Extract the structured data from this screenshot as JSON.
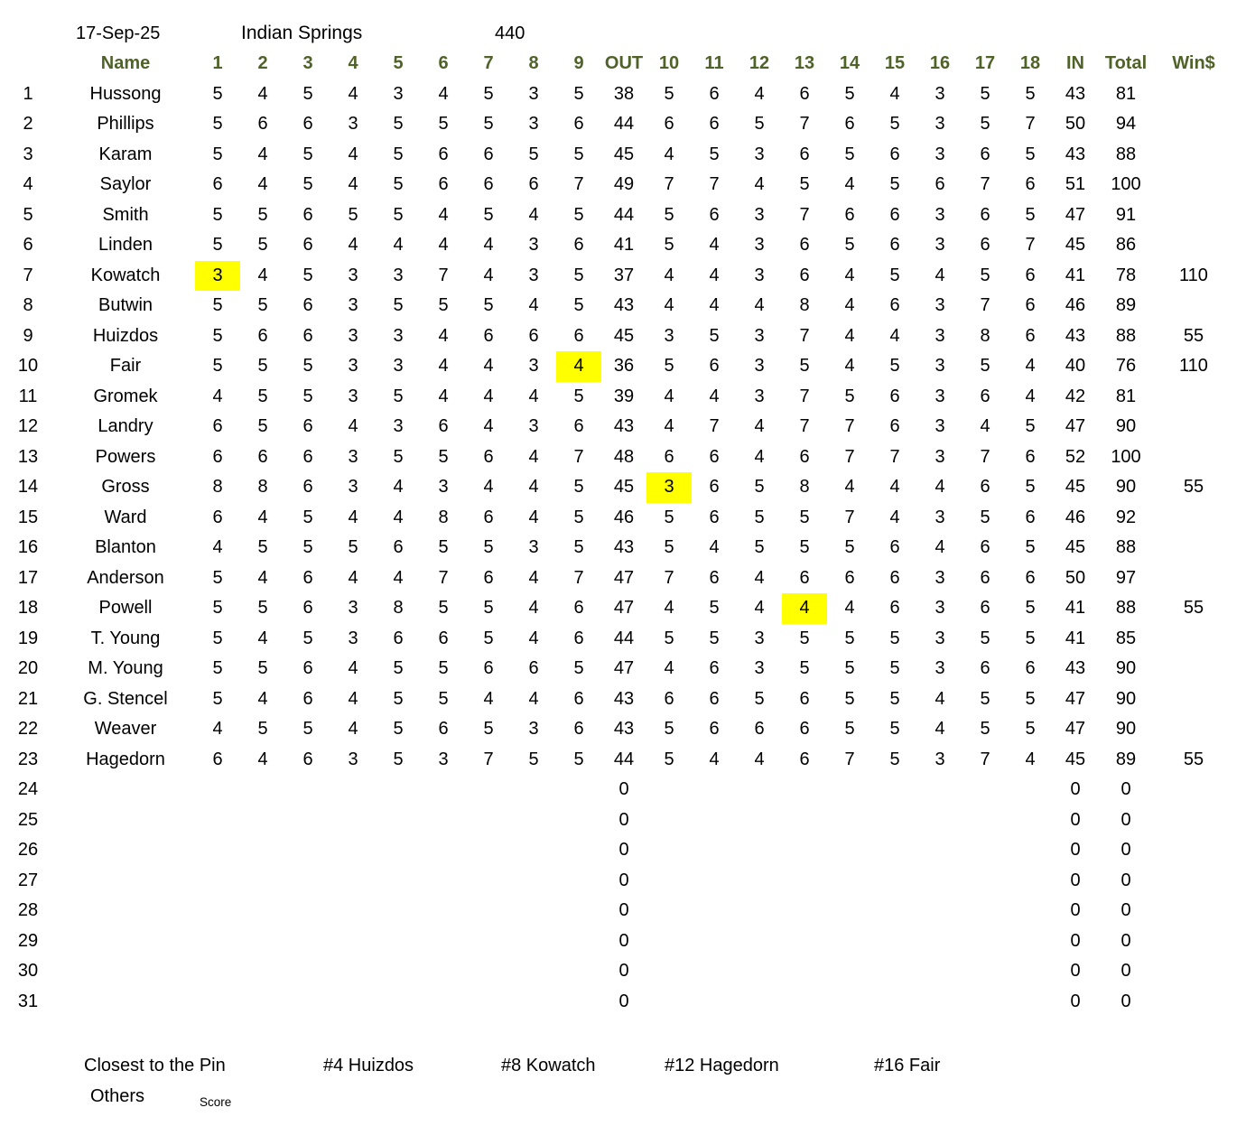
{
  "header": {
    "date": "17-Sep-25",
    "course": "Indian Springs",
    "number": "440"
  },
  "colors": {
    "header_text": "#4F6228",
    "highlight": "#FFFF00",
    "body_text": "#000000"
  },
  "table": {
    "columns": [
      "",
      "Name",
      "1",
      "2",
      "3",
      "4",
      "5",
      "6",
      "7",
      "8",
      "9",
      "OUT",
      "10",
      "11",
      "12",
      "13",
      "14",
      "15",
      "16",
      "17",
      "18",
      "IN",
      "Total",
      "Win$"
    ],
    "players": [
      {
        "row": 1,
        "name": "Hussong",
        "holes": [
          5,
          4,
          5,
          4,
          3,
          4,
          5,
          3,
          5,
          5,
          6,
          4,
          6,
          5,
          4,
          3,
          5,
          5
        ],
        "out": 38,
        "in": 43,
        "total": 81,
        "win": ""
      },
      {
        "row": 2,
        "name": "Phillips",
        "holes": [
          5,
          6,
          6,
          3,
          5,
          5,
          5,
          3,
          6,
          6,
          6,
          5,
          7,
          6,
          5,
          3,
          5,
          7
        ],
        "out": 44,
        "in": 50,
        "total": 94,
        "win": ""
      },
      {
        "row": 3,
        "name": "Karam",
        "holes": [
          5,
          4,
          5,
          4,
          5,
          6,
          6,
          5,
          5,
          4,
          5,
          3,
          6,
          5,
          6,
          3,
          6,
          5
        ],
        "out": 45,
        "in": 43,
        "total": 88,
        "win": ""
      },
      {
        "row": 4,
        "name": "Saylor",
        "holes": [
          6,
          4,
          5,
          4,
          5,
          6,
          6,
          6,
          7,
          7,
          7,
          4,
          5,
          4,
          5,
          6,
          7,
          6
        ],
        "out": 49,
        "in": 51,
        "total": 100,
        "win": ""
      },
      {
        "row": 5,
        "name": "Smith",
        "holes": [
          5,
          5,
          6,
          5,
          5,
          4,
          5,
          4,
          5,
          5,
          6,
          3,
          7,
          6,
          6,
          3,
          6,
          5
        ],
        "out": 44,
        "in": 47,
        "total": 91,
        "win": ""
      },
      {
        "row": 6,
        "name": "Linden",
        "holes": [
          5,
          5,
          6,
          4,
          4,
          4,
          4,
          3,
          6,
          5,
          4,
          3,
          6,
          5,
          6,
          3,
          6,
          7
        ],
        "out": 41,
        "in": 45,
        "total": 86,
        "win": ""
      },
      {
        "row": 7,
        "name": "Kowatch",
        "holes": [
          3,
          4,
          5,
          3,
          3,
          7,
          4,
          3,
          5,
          4,
          4,
          3,
          6,
          4,
          5,
          4,
          5,
          6
        ],
        "out": 37,
        "in": 41,
        "total": 78,
        "win": "110",
        "highlight_hole": 1
      },
      {
        "row": 8,
        "name": "Butwin",
        "holes": [
          5,
          5,
          6,
          3,
          5,
          5,
          5,
          4,
          5,
          4,
          4,
          4,
          8,
          4,
          6,
          3,
          7,
          6
        ],
        "out": 43,
        "in": 46,
        "total": 89,
        "win": ""
      },
      {
        "row": 9,
        "name": "Huizdos",
        "holes": [
          5,
          6,
          6,
          3,
          3,
          4,
          6,
          6,
          6,
          3,
          5,
          3,
          7,
          4,
          4,
          3,
          8,
          6
        ],
        "out": 45,
        "in": 43,
        "total": 88,
        "win": "55"
      },
      {
        "row": 10,
        "name": "Fair",
        "holes": [
          5,
          5,
          5,
          3,
          3,
          4,
          4,
          3,
          4,
          5,
          6,
          3,
          5,
          4,
          5,
          3,
          5,
          4
        ],
        "out": 36,
        "in": 40,
        "total": 76,
        "win": "110",
        "highlight_hole": 9
      },
      {
        "row": 11,
        "name": "Gromek",
        "holes": [
          4,
          5,
          5,
          3,
          5,
          4,
          4,
          4,
          5,
          4,
          4,
          3,
          7,
          5,
          6,
          3,
          6,
          4
        ],
        "out": 39,
        "in": 42,
        "total": 81,
        "win": ""
      },
      {
        "row": 12,
        "name": "Landry",
        "holes": [
          6,
          5,
          6,
          4,
          3,
          6,
          4,
          3,
          6,
          4,
          7,
          4,
          7,
          7,
          6,
          3,
          4,
          5
        ],
        "out": 43,
        "in": 47,
        "total": 90,
        "win": ""
      },
      {
        "row": 13,
        "name": "Powers",
        "holes": [
          6,
          6,
          6,
          3,
          5,
          5,
          6,
          4,
          7,
          6,
          6,
          4,
          6,
          7,
          7,
          3,
          7,
          6
        ],
        "out": 48,
        "in": 52,
        "total": 100,
        "win": ""
      },
      {
        "row": 14,
        "name": "Gross",
        "holes": [
          8,
          8,
          6,
          3,
          4,
          3,
          4,
          4,
          5,
          3,
          6,
          5,
          8,
          4,
          4,
          4,
          6,
          5
        ],
        "out": 45,
        "in": 45,
        "total": 90,
        "win": "55",
        "highlight_hole": 10
      },
      {
        "row": 15,
        "name": "Ward",
        "holes": [
          6,
          4,
          5,
          4,
          4,
          8,
          6,
          4,
          5,
          5,
          6,
          5,
          5,
          7,
          4,
          3,
          5,
          6
        ],
        "out": 46,
        "in": 46,
        "total": 92,
        "win": ""
      },
      {
        "row": 16,
        "name": "Blanton",
        "holes": [
          4,
          5,
          5,
          5,
          6,
          5,
          5,
          3,
          5,
          5,
          4,
          5,
          5,
          5,
          6,
          4,
          6,
          5
        ],
        "out": 43,
        "in": 45,
        "total": 88,
        "win": ""
      },
      {
        "row": 17,
        "name": "Anderson",
        "holes": [
          5,
          4,
          6,
          4,
          4,
          7,
          6,
          4,
          7,
          7,
          6,
          4,
          6,
          6,
          6,
          3,
          6,
          6
        ],
        "out": 47,
        "in": 50,
        "total": 97,
        "win": ""
      },
      {
        "row": 18,
        "name": "Powell",
        "holes": [
          5,
          5,
          6,
          3,
          8,
          5,
          5,
          4,
          6,
          4,
          5,
          4,
          4,
          4,
          6,
          3,
          6,
          5
        ],
        "out": 47,
        "in": 41,
        "total": 88,
        "win": "55",
        "highlight_hole": 13
      },
      {
        "row": 19,
        "name": "T. Young",
        "holes": [
          5,
          4,
          5,
          3,
          6,
          6,
          5,
          4,
          6,
          5,
          5,
          3,
          5,
          5,
          5,
          3,
          5,
          5
        ],
        "out": 44,
        "in": 41,
        "total": 85,
        "win": ""
      },
      {
        "row": 20,
        "name": "M. Young",
        "holes": [
          5,
          5,
          6,
          4,
          5,
          5,
          6,
          6,
          5,
          4,
          6,
          3,
          5,
          5,
          5,
          3,
          6,
          6
        ],
        "out": 47,
        "in": 43,
        "total": 90,
        "win": ""
      },
      {
        "row": 21,
        "name": "G. Stencel",
        "holes": [
          5,
          4,
          6,
          4,
          5,
          5,
          4,
          4,
          6,
          6,
          6,
          5,
          6,
          5,
          5,
          4,
          5,
          5
        ],
        "out": 43,
        "in": 47,
        "total": 90,
        "win": ""
      },
      {
        "row": 22,
        "name": "Weaver",
        "holes": [
          4,
          5,
          5,
          4,
          5,
          6,
          5,
          3,
          6,
          5,
          6,
          6,
          6,
          5,
          5,
          4,
          5,
          5
        ],
        "out": 43,
        "in": 47,
        "total": 90,
        "win": ""
      },
      {
        "row": 23,
        "name": "Hagedorn",
        "holes": [
          6,
          4,
          6,
          3,
          5,
          3,
          7,
          5,
          5,
          5,
          4,
          4,
          6,
          7,
          5,
          3,
          7,
          4
        ],
        "out": 44,
        "in": 45,
        "total": 89,
        "win": "55"
      },
      {
        "row": 24,
        "name": "",
        "holes": [],
        "out": 0,
        "in": 0,
        "total": 0,
        "win": ""
      },
      {
        "row": 25,
        "name": "",
        "holes": [],
        "out": 0,
        "in": 0,
        "total": 0,
        "win": ""
      },
      {
        "row": 26,
        "name": "",
        "holes": [],
        "out": 0,
        "in": 0,
        "total": 0,
        "win": ""
      },
      {
        "row": 27,
        "name": "",
        "holes": [],
        "out": 0,
        "in": 0,
        "total": 0,
        "win": ""
      },
      {
        "row": 28,
        "name": "",
        "holes": [],
        "out": 0,
        "in": 0,
        "total": 0,
        "win": ""
      },
      {
        "row": 29,
        "name": "",
        "holes": [],
        "out": 0,
        "in": 0,
        "total": 0,
        "win": ""
      },
      {
        "row": 30,
        "name": "",
        "holes": [],
        "out": 0,
        "in": 0,
        "total": 0,
        "win": ""
      },
      {
        "row": 31,
        "name": "",
        "holes": [],
        "out": 0,
        "in": 0,
        "total": 0,
        "win": ""
      }
    ]
  },
  "footer": {
    "closest_label": "Closest to the Pin",
    "winners": [
      "#4 Huizdos",
      "#8 Kowatch",
      "#12 Hagedorn",
      "#16 Fair"
    ],
    "others_label": "Others",
    "score_label": "Score"
  }
}
